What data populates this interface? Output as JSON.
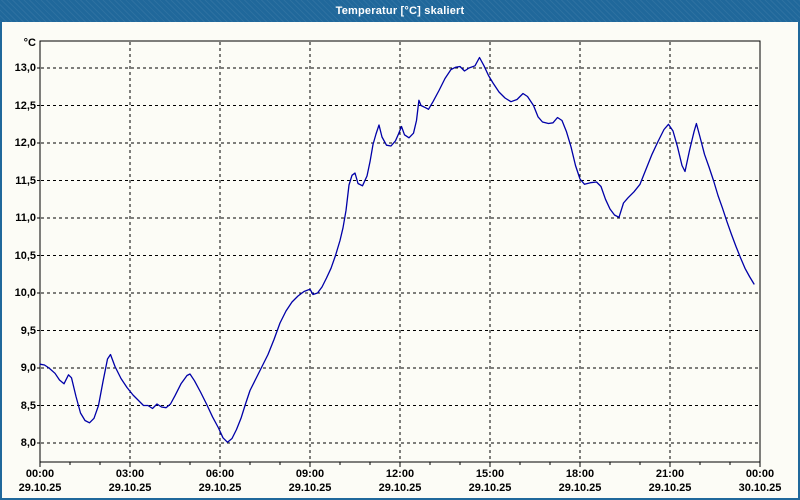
{
  "window": {
    "title": "Temperatur [°C] skaliert",
    "titlebar_color": "#20689B",
    "border_color": "#20689B",
    "background_color": "#fcfcf6"
  },
  "chart_data": {
    "type": "line",
    "title": "Temperatur [°C] skaliert",
    "grid": true,
    "line_color": "#0000A8",
    "grid_color": "#000000",
    "plot_border_color": "#000000",
    "y_axis": {
      "unit": "°C",
      "min": 8.0,
      "max": 13.0,
      "step": 0.5,
      "labels": [
        {
          "value": 13.0,
          "text": "13,0"
        },
        {
          "value": 12.5,
          "text": "12,5"
        },
        {
          "value": 12.0,
          "text": "12,0"
        },
        {
          "value": 11.5,
          "text": "11,5"
        },
        {
          "value": 11.0,
          "text": "11,0"
        },
        {
          "value": 10.5,
          "text": "10,5"
        },
        {
          "value": 10.0,
          "text": "10,0"
        },
        {
          "value": 9.5,
          "text": "9,5"
        },
        {
          "value": 9.0,
          "text": "9,0"
        },
        {
          "value": 8.5,
          "text": "8,5"
        },
        {
          "value": 8.0,
          "text": "8,0"
        }
      ]
    },
    "x_axis": {
      "start_hour": 0,
      "end_hour": 24,
      "major_step_hours": 3,
      "minor_step_hours": 1,
      "ticks": [
        {
          "hour": 0,
          "time": "00:00",
          "date": "29.10.25"
        },
        {
          "hour": 3,
          "time": "03:00",
          "date": "29.10.25"
        },
        {
          "hour": 6,
          "time": "06:00",
          "date": "29.10.25"
        },
        {
          "hour": 9,
          "time": "09:00",
          "date": "29.10.25"
        },
        {
          "hour": 12,
          "time": "12:00",
          "date": "29.10.25"
        },
        {
          "hour": 15,
          "time": "15:00",
          "date": "29.10.25"
        },
        {
          "hour": 18,
          "time": "18:00",
          "date": "29.10.25"
        },
        {
          "hour": 21,
          "time": "21:00",
          "date": "29.10.25"
        },
        {
          "hour": 24,
          "time": "00:00",
          "date": "30.10.25"
        }
      ]
    },
    "series": [
      {
        "name": "Temperatur",
        "points": [
          [
            0.0,
            9.05
          ],
          [
            0.15,
            9.04
          ],
          [
            0.3,
            9.0
          ],
          [
            0.5,
            8.93
          ],
          [
            0.65,
            8.84
          ],
          [
            0.8,
            8.79
          ],
          [
            0.95,
            8.91
          ],
          [
            1.05,
            8.87
          ],
          [
            1.2,
            8.62
          ],
          [
            1.35,
            8.4
          ],
          [
            1.5,
            8.3
          ],
          [
            1.65,
            8.27
          ],
          [
            1.8,
            8.33
          ],
          [
            1.95,
            8.5
          ],
          [
            2.1,
            8.82
          ],
          [
            2.25,
            9.12
          ],
          [
            2.35,
            9.18
          ],
          [
            2.5,
            9.02
          ],
          [
            2.7,
            8.86
          ],
          [
            2.9,
            8.74
          ],
          [
            3.1,
            8.64
          ],
          [
            3.3,
            8.56
          ],
          [
            3.45,
            8.5
          ],
          [
            3.6,
            8.5
          ],
          [
            3.75,
            8.46
          ],
          [
            3.9,
            8.52
          ],
          [
            4.05,
            8.48
          ],
          [
            4.2,
            8.47
          ],
          [
            4.35,
            8.52
          ],
          [
            4.5,
            8.63
          ],
          [
            4.7,
            8.79
          ],
          [
            4.9,
            8.9
          ],
          [
            5.0,
            8.92
          ],
          [
            5.15,
            8.83
          ],
          [
            5.35,
            8.68
          ],
          [
            5.55,
            8.52
          ],
          [
            5.75,
            8.35
          ],
          [
            5.95,
            8.2
          ],
          [
            6.1,
            8.07
          ],
          [
            6.25,
            8.01
          ],
          [
            6.4,
            8.06
          ],
          [
            6.55,
            8.18
          ],
          [
            6.7,
            8.33
          ],
          [
            6.85,
            8.52
          ],
          [
            7.0,
            8.7
          ],
          [
            7.2,
            8.86
          ],
          [
            7.4,
            9.02
          ],
          [
            7.6,
            9.18
          ],
          [
            7.8,
            9.38
          ],
          [
            8.0,
            9.6
          ],
          [
            8.2,
            9.76
          ],
          [
            8.4,
            9.88
          ],
          [
            8.6,
            9.96
          ],
          [
            8.8,
            10.02
          ],
          [
            9.0,
            10.05
          ],
          [
            9.1,
            9.98
          ],
          [
            9.25,
            10.0
          ],
          [
            9.4,
            10.08
          ],
          [
            9.55,
            10.2
          ],
          [
            9.7,
            10.33
          ],
          [
            9.85,
            10.5
          ],
          [
            10.0,
            10.7
          ],
          [
            10.1,
            10.87
          ],
          [
            10.2,
            11.1
          ],
          [
            10.3,
            11.44
          ],
          [
            10.4,
            11.57
          ],
          [
            10.5,
            11.6
          ],
          [
            10.6,
            11.46
          ],
          [
            10.75,
            11.43
          ],
          [
            10.9,
            11.56
          ],
          [
            11.0,
            11.75
          ],
          [
            11.1,
            11.98
          ],
          [
            11.2,
            12.12
          ],
          [
            11.3,
            12.24
          ],
          [
            11.4,
            12.08
          ],
          [
            11.55,
            11.97
          ],
          [
            11.7,
            11.96
          ],
          [
            11.85,
            12.03
          ],
          [
            11.95,
            12.12
          ],
          [
            12.05,
            12.22
          ],
          [
            12.15,
            12.11
          ],
          [
            12.3,
            12.07
          ],
          [
            12.45,
            12.13
          ],
          [
            12.55,
            12.3
          ],
          [
            12.63,
            12.57
          ],
          [
            12.7,
            12.5
          ],
          [
            12.85,
            12.47
          ],
          [
            12.95,
            12.45
          ],
          [
            13.1,
            12.55
          ],
          [
            13.3,
            12.7
          ],
          [
            13.5,
            12.86
          ],
          [
            13.7,
            12.98
          ],
          [
            13.85,
            13.01
          ],
          [
            14.0,
            13.02
          ],
          [
            14.15,
            12.96
          ],
          [
            14.3,
            13.0
          ],
          [
            14.5,
            13.03
          ],
          [
            14.65,
            13.14
          ],
          [
            14.8,
            13.03
          ],
          [
            14.95,
            12.9
          ],
          [
            15.1,
            12.8
          ],
          [
            15.3,
            12.68
          ],
          [
            15.5,
            12.6
          ],
          [
            15.7,
            12.55
          ],
          [
            15.9,
            12.58
          ],
          [
            16.1,
            12.66
          ],
          [
            16.25,
            12.62
          ],
          [
            16.45,
            12.5
          ],
          [
            16.6,
            12.35
          ],
          [
            16.75,
            12.28
          ],
          [
            16.95,
            12.26
          ],
          [
            17.1,
            12.27
          ],
          [
            17.25,
            12.34
          ],
          [
            17.4,
            12.3
          ],
          [
            17.55,
            12.15
          ],
          [
            17.7,
            11.95
          ],
          [
            17.85,
            11.7
          ],
          [
            18.0,
            11.52
          ],
          [
            18.15,
            11.45
          ],
          [
            18.35,
            11.47
          ],
          [
            18.55,
            11.48
          ],
          [
            18.7,
            11.42
          ],
          [
            18.85,
            11.25
          ],
          [
            19.0,
            11.12
          ],
          [
            19.15,
            11.04
          ],
          [
            19.3,
            11.01
          ],
          [
            19.45,
            11.2
          ],
          [
            19.6,
            11.27
          ],
          [
            19.8,
            11.35
          ],
          [
            20.0,
            11.45
          ],
          [
            20.2,
            11.65
          ],
          [
            20.4,
            11.85
          ],
          [
            20.6,
            12.02
          ],
          [
            20.8,
            12.18
          ],
          [
            20.95,
            12.25
          ],
          [
            21.1,
            12.16
          ],
          [
            21.25,
            11.95
          ],
          [
            21.4,
            11.7
          ],
          [
            21.5,
            11.62
          ],
          [
            21.65,
            11.9
          ],
          [
            21.8,
            12.15
          ],
          [
            21.88,
            12.26
          ],
          [
            22.0,
            12.08
          ],
          [
            22.15,
            11.85
          ],
          [
            22.3,
            11.68
          ],
          [
            22.45,
            11.5
          ],
          [
            22.6,
            11.3
          ],
          [
            22.75,
            11.13
          ],
          [
            22.9,
            10.95
          ],
          [
            23.05,
            10.78
          ],
          [
            23.2,
            10.62
          ],
          [
            23.35,
            10.47
          ],
          [
            23.5,
            10.33
          ],
          [
            23.65,
            10.22
          ],
          [
            23.8,
            10.12
          ]
        ]
      }
    ]
  }
}
